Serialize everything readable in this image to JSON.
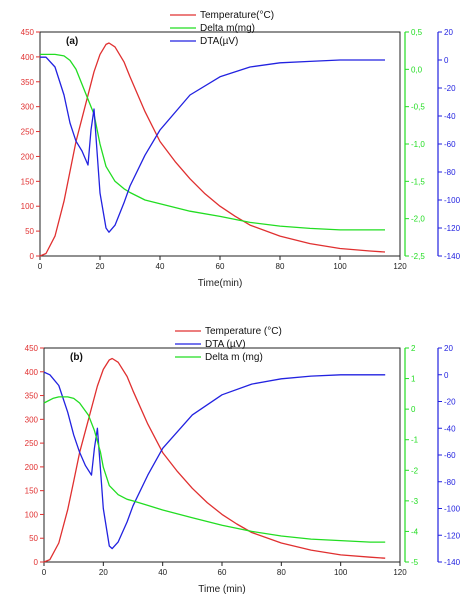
{
  "colors": {
    "temperature": "#e03030",
    "delta_m": "#22dd22",
    "dta": "#2222e0",
    "axis": "#222222"
  },
  "chart_data": [
    {
      "type": "line",
      "panel_label": "(a)",
      "xlabel": "Time(min)",
      "xlim": [
        0,
        120
      ],
      "x_ticks": [
        "0",
        "20",
        "40",
        "60",
        "80",
        "100",
        "120"
      ],
      "legend_placement": "top-right",
      "axes": {
        "left": {
          "lim": [
            0,
            450
          ],
          "ticks": [
            "0",
            "50",
            "100",
            "150",
            "200",
            "250",
            "300",
            "350",
            "400",
            "450"
          ],
          "color": "#e03030"
        },
        "right1": {
          "lim": [
            -2.5,
            0.5
          ],
          "ticks": [
            "0,5",
            "0,0",
            "-0,5",
            "-1,0",
            "-1,5",
            "-2,0",
            "-2,5"
          ],
          "color": "#22dd22"
        },
        "right2": {
          "lim": [
            -140,
            20
          ],
          "ticks": [
            "20",
            "0",
            "-20",
            "-40",
            "-60",
            "-80",
            "-100",
            "-120",
            "-140"
          ],
          "color": "#2222e0"
        }
      },
      "series": [
        {
          "name": "Temperature(°C)",
          "key": "temperature",
          "axis": "left",
          "x": [
            0,
            2,
            5,
            8,
            10,
            12,
            15,
            18,
            20,
            22,
            23,
            25,
            28,
            30,
            35,
            40,
            45,
            50,
            55,
            60,
            65,
            70,
            80,
            90,
            100,
            110,
            115
          ],
          "y": [
            0,
            5,
            40,
            110,
            170,
            230,
            300,
            370,
            405,
            425,
            428,
            420,
            390,
            360,
            290,
            230,
            190,
            155,
            125,
            100,
            80,
            62,
            40,
            25,
            15,
            10,
            8
          ]
        },
        {
          "name": "Delta m(mg)",
          "key": "delta_m",
          "axis": "right1",
          "x": [
            0,
            5,
            8,
            10,
            12,
            14,
            16,
            18,
            19,
            20,
            22,
            25,
            28,
            30,
            35,
            40,
            50,
            60,
            70,
            80,
            90,
            100,
            110,
            115
          ],
          "y": [
            0.2,
            0.2,
            0.18,
            0.12,
            0.0,
            -0.2,
            -0.4,
            -0.6,
            -0.8,
            -1.0,
            -1.3,
            -1.5,
            -1.6,
            -1.65,
            -1.75,
            -1.8,
            -1.9,
            -1.97,
            -2.05,
            -2.1,
            -2.13,
            -2.15,
            -2.15,
            -2.15
          ]
        },
        {
          "name": "DTA(µV)",
          "key": "dta",
          "axis": "right2",
          "x": [
            0,
            2,
            5,
            8,
            10,
            12,
            14,
            16,
            17,
            18,
            19,
            20,
            22,
            23,
            25,
            28,
            30,
            35,
            40,
            50,
            60,
            70,
            80,
            90,
            100,
            110,
            115
          ],
          "y": [
            2,
            2,
            -5,
            -25,
            -45,
            -58,
            -65,
            -75,
            -50,
            -35,
            -65,
            -95,
            -120,
            -123,
            -118,
            -102,
            -90,
            -68,
            -50,
            -25,
            -12,
            -5,
            -2,
            -1,
            0,
            0,
            0
          ]
        }
      ]
    },
    {
      "type": "line",
      "panel_label": "(b)",
      "xlabel": "Time (min)",
      "xlim": [
        0,
        120
      ],
      "x_ticks": [
        "0",
        "20",
        "40",
        "60",
        "80",
        "100",
        "120"
      ],
      "legend_placement": "top-right",
      "axes": {
        "left": {
          "lim": [
            0,
            450
          ],
          "ticks": [
            "0",
            "50",
            "100",
            "150",
            "200",
            "250",
            "300",
            "350",
            "400",
            "450"
          ],
          "color": "#e03030"
        },
        "right1": {
          "lim": [
            -5,
            2
          ],
          "ticks": [
            "2",
            "1",
            "0",
            "-1",
            "-2",
            "-3",
            "-4",
            "-5"
          ],
          "color": "#22dd22"
        },
        "right2": {
          "lim": [
            -140,
            20
          ],
          "ticks": [
            "20",
            "0",
            "-20",
            "-40",
            "-60",
            "-80",
            "-100",
            "-120",
            "-140"
          ],
          "color": "#2222e0"
        }
      },
      "series": [
        {
          "name": "Temperature (°C)",
          "key": "temperature",
          "axis": "left",
          "x": [
            0,
            2,
            5,
            8,
            10,
            12,
            15,
            18,
            20,
            22,
            23,
            25,
            28,
            30,
            35,
            40,
            45,
            50,
            55,
            60,
            65,
            70,
            80,
            90,
            100,
            110,
            115
          ],
          "y": [
            0,
            5,
            40,
            110,
            170,
            230,
            300,
            370,
            405,
            425,
            428,
            420,
            390,
            360,
            290,
            230,
            190,
            155,
            125,
            100,
            80,
            62,
            40,
            25,
            15,
            10,
            8
          ]
        },
        {
          "name": "DTA (µV)",
          "key": "dta",
          "axis": "right2",
          "x": [
            0,
            2,
            5,
            8,
            10,
            12,
            14,
            16,
            17,
            18,
            19,
            20,
            22,
            23,
            25,
            28,
            30,
            35,
            40,
            50,
            60,
            70,
            80,
            90,
            100,
            110,
            115
          ],
          "y": [
            2,
            0,
            -8,
            -28,
            -45,
            -58,
            -68,
            -75,
            -55,
            -40,
            -70,
            -100,
            -128,
            -130,
            -125,
            -110,
            -98,
            -75,
            -55,
            -30,
            -15,
            -7,
            -3,
            -1,
            0,
            0,
            0
          ]
        },
        {
          "name": "Delta m (mg)",
          "key": "delta_m",
          "axis": "right1",
          "x": [
            0,
            3,
            5,
            8,
            10,
            12,
            15,
            17,
            19,
            20,
            22,
            25,
            28,
            30,
            35,
            40,
            50,
            60,
            70,
            80,
            90,
            100,
            110,
            115
          ],
          "y": [
            0.2,
            0.35,
            0.4,
            0.4,
            0.35,
            0.2,
            -0.2,
            -0.7,
            -1.4,
            -1.9,
            -2.5,
            -2.8,
            -2.95,
            -3.0,
            -3.15,
            -3.3,
            -3.55,
            -3.8,
            -4.0,
            -4.15,
            -4.25,
            -4.3,
            -4.35,
            -4.35
          ]
        }
      ]
    }
  ]
}
